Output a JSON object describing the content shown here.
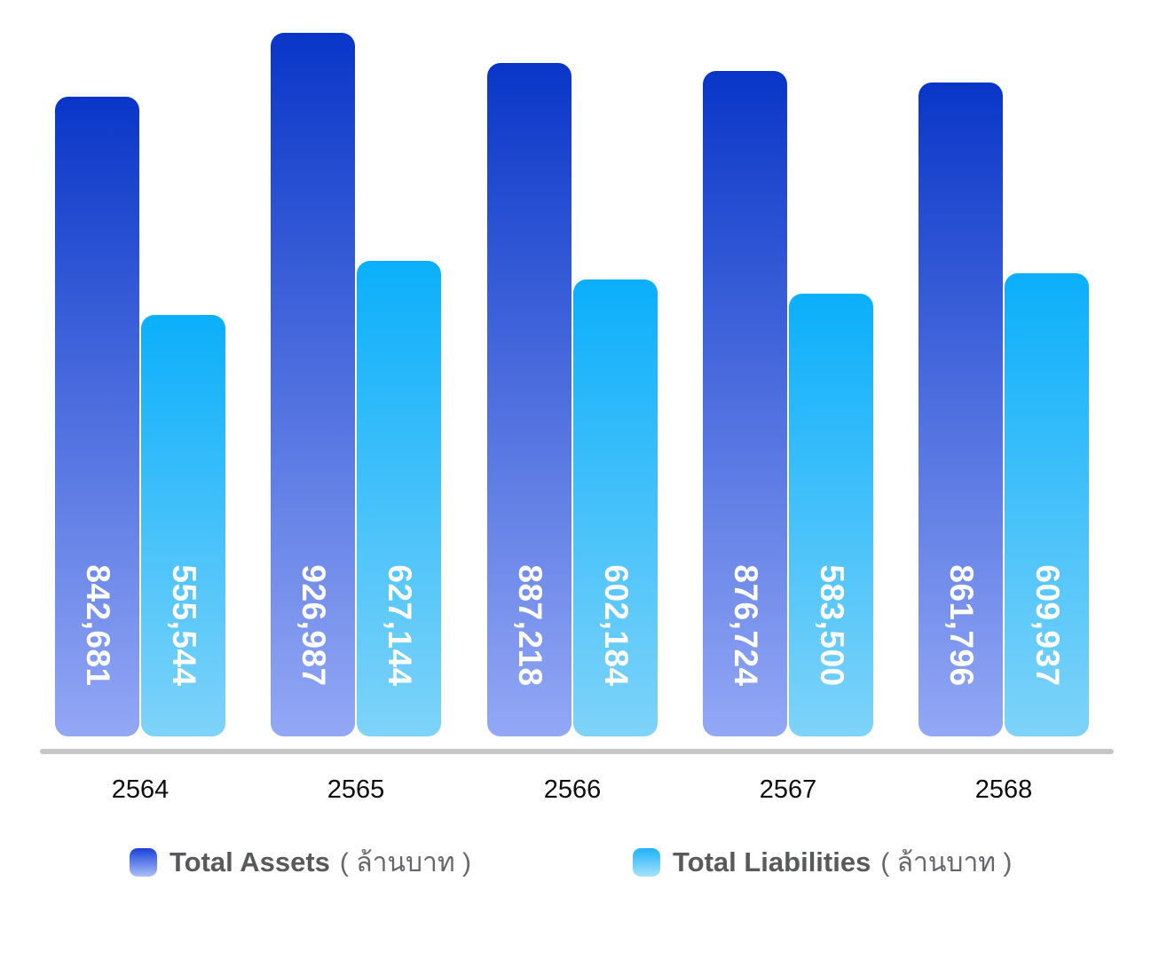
{
  "chart_data": {
    "type": "bar",
    "categories": [
      "2564",
      "2565",
      "2566",
      "2567",
      "2568"
    ],
    "series": [
      {
        "name": "Total Assets",
        "unit": "( ล้านบาท )",
        "values": [
          842681,
          926987,
          887218,
          876724,
          861796
        ],
        "value_labels": [
          "842,681",
          "926,987",
          "887,218",
          "876,724",
          "861,796"
        ],
        "gradient_top": "#0936C8",
        "gradient_bottom": "#93A8F5"
      },
      {
        "name": "Total Liabilities",
        "unit": "( ล้านบาท )",
        "values": [
          555544,
          627144,
          602184,
          583500,
          609937
        ],
        "value_labels": [
          "555,544",
          "627,144",
          "602,184",
          "583,500",
          "609,937"
        ],
        "gradient_top": "#0BAFFA",
        "gradient_bottom": "#7ED3F9"
      }
    ],
    "title": "",
    "xlabel": "",
    "ylabel": "",
    "ylim": [
      0,
      940000
    ],
    "grid": false,
    "legend_position": "bottom",
    "value_label_style": "white bold numbers rotated 90deg clockwise inside bars near bottom",
    "axis_line_color": "#c6c6c6"
  },
  "legend": {
    "items": [
      {
        "label": "Total Assets",
        "unit": "( ล้านบาท )",
        "swatch_top": "#1A41D8",
        "swatch_bottom": "#A8C0F8"
      },
      {
        "label": "Total Liabilities",
        "unit": "( ล้านบาท )",
        "swatch_top": "#1FB2F9",
        "swatch_bottom": "#A5E2FC"
      }
    ]
  }
}
